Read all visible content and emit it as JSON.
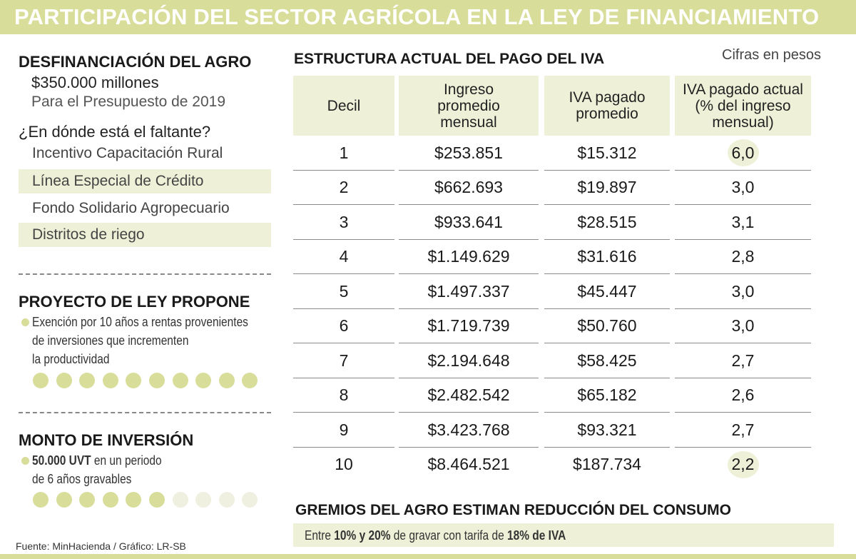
{
  "title": "PARTICIPACIÓN DEL SECTOR AGRÍCOLA EN LA LEY DE FINANCIAMIENTO",
  "left": {
    "desf_heading": "DESFINANCIACIÓN DEL AGRO",
    "amount": "$350.000 millones",
    "amount_note": "Para el Presupuesto de 2019",
    "question": "¿En dónde está el faltante?",
    "items": [
      "Incentivo Capacitación Rural",
      "Línea Especial de Crédito",
      "Fondo Solidario Agropecuario",
      "Distritos de riego"
    ],
    "proyecto_heading": "PROYECTO DE LEY PROPONE",
    "proyecto_lines": [
      "Exención por 10 años a rentas provenientes",
      "de inversiones que incrementen",
      "la productividad"
    ],
    "proyecto_years": 10,
    "monto_heading": "MONTO DE INVERSIÓN",
    "monto_bold": "50.000 UVT",
    "monto_rest": " en un periodo",
    "monto_line2": "de 6 años gravables",
    "monto_years_filled": 6,
    "monto_years_total": 10
  },
  "table": {
    "heading": "ESTRUCTURA ACTUAL DEL PAGO DEL IVA",
    "note": "Cifras en pesos",
    "headers": {
      "decil": "Decil",
      "ingreso": [
        "Ingreso",
        "promedio",
        "mensual"
      ],
      "iva": [
        "IVA pagado",
        "promedio"
      ],
      "pct": [
        "IVA pagado actual",
        "(% del ingreso",
        "mensual)"
      ]
    },
    "rows": [
      {
        "decil": "1",
        "ingreso": "$253.851",
        "iva": "$15.312",
        "pct": "6,0"
      },
      {
        "decil": "2",
        "ingreso": "$662.693",
        "iva": "$19.897",
        "pct": "3,0"
      },
      {
        "decil": "3",
        "ingreso": "$933.641",
        "iva": "$28.515",
        "pct": "3,1"
      },
      {
        "decil": "4",
        "ingreso": "$1.149.629",
        "iva": "$31.616",
        "pct": "2,8"
      },
      {
        "decil": "5",
        "ingreso": "$1.497.337",
        "iva": "$45.447",
        "pct": "3,0"
      },
      {
        "decil": "6",
        "ingreso": "$1.719.739",
        "iva": "$50.760",
        "pct": "3,0"
      },
      {
        "decil": "7",
        "ingreso": "$2.194.648",
        "iva": "$58.425",
        "pct": "2,7"
      },
      {
        "decil": "8",
        "ingreso": "$2.482.542",
        "iva": "$65.182",
        "pct": "2,6"
      },
      {
        "decil": "9",
        "ingreso": "$3.423.768",
        "iva": "$93.321",
        "pct": "2,7"
      },
      {
        "decil": "10",
        "ingreso": "$8.464.521",
        "iva": "$187.734",
        "pct": "2,2"
      }
    ]
  },
  "gremios": {
    "heading": "GREMIOS DEL AGRO ESTIMAN REDUCCIÓN DEL CONSUMO",
    "t1": "Entre ",
    "t2": "10% y 20%",
    "t3": "  de gravar con tarifa de ",
    "t4": "18% de IVA"
  },
  "footer": "Fuente:  MinHacienda / Gráfico: LR-SB",
  "colors": {
    "accent": "#d8dd9a",
    "shade": "#eef1d8",
    "dot_off": "#eff0e0"
  }
}
